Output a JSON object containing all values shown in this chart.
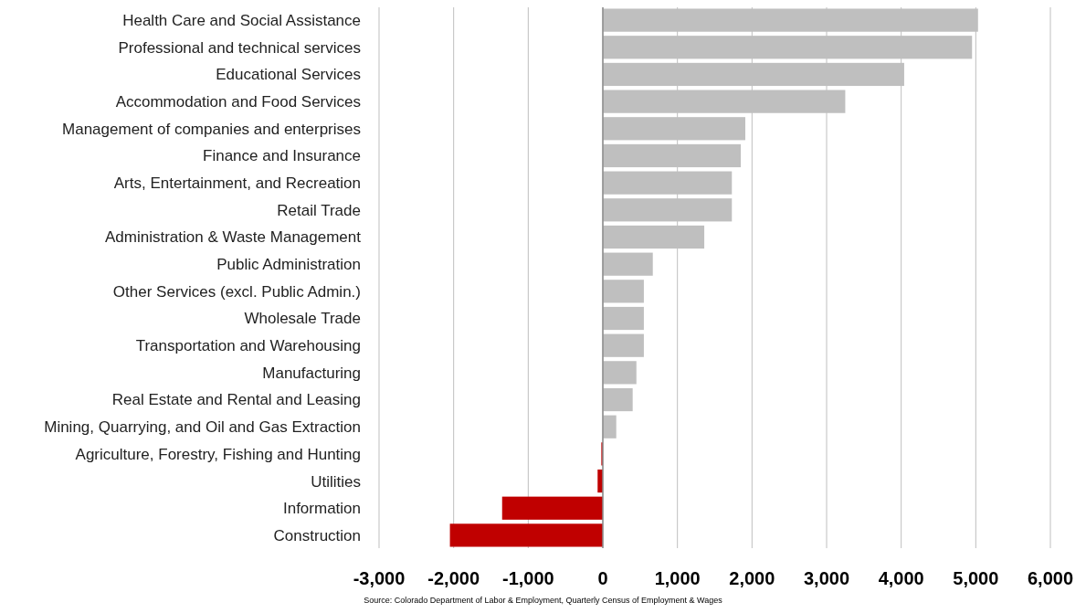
{
  "chart_data": {
    "type": "bar",
    "orientation": "horizontal",
    "categories": [
      "Health Care and Social Assistance",
      "Professional and technical services",
      "Educational Services",
      "Accommodation and Food Services",
      "Management of companies and enterprises",
      "Finance and Insurance",
      "Arts, Entertainment, and Recreation",
      "Retail Trade",
      "Administration & Waste Management",
      "Public Administration",
      "Other Services (excl. Public Admin.)",
      "Wholesale Trade",
      "Transportation and Warehousing",
      "Manufacturing",
      "Real Estate and Rental and Leasing",
      "Mining, Quarrying, and Oil and Gas Extraction",
      "Agriculture, Forestry, Fishing and Hunting",
      "Utilities",
      "Information",
      "Construction"
    ],
    "values": [
      5030,
      4950,
      4040,
      3250,
      1910,
      1850,
      1730,
      1730,
      1360,
      670,
      550,
      550,
      550,
      450,
      400,
      180,
      -20,
      -70,
      -1350,
      -2050
    ],
    "colors": [
      "#bfbfbf",
      "#bfbfbf",
      "#bfbfbf",
      "#bfbfbf",
      "#bfbfbf",
      "#bfbfbf",
      "#bfbfbf",
      "#bfbfbf",
      "#bfbfbf",
      "#bfbfbf",
      "#bfbfbf",
      "#bfbfbf",
      "#bfbfbf",
      "#bfbfbf",
      "#bfbfbf",
      "#bfbfbf",
      "#c00000",
      "#c00000",
      "#c00000",
      "#c00000"
    ],
    "xlim": [
      -3000,
      6000
    ],
    "xticks": [
      {
        "value": -3000,
        "label": "-3,000"
      },
      {
        "value": -2000,
        "label": "-2,000"
      },
      {
        "value": -1000,
        "label": "-1,000"
      },
      0,
      {
        "value": 1000,
        "label": "1,000"
      },
      {
        "value": 2000,
        "label": "2,000"
      },
      {
        "value": 3000,
        "label": "3,000"
      },
      {
        "value": 4000,
        "label": "4,000"
      },
      {
        "value": 5000,
        "label": "5,000"
      },
      {
        "value": 6000,
        "label": "6,000"
      }
    ],
    "grid": "x",
    "annotations": [
      "Source:  Colorado Department  of Labor & Employment, Quarterly  Census of Employment  & Wages"
    ]
  }
}
